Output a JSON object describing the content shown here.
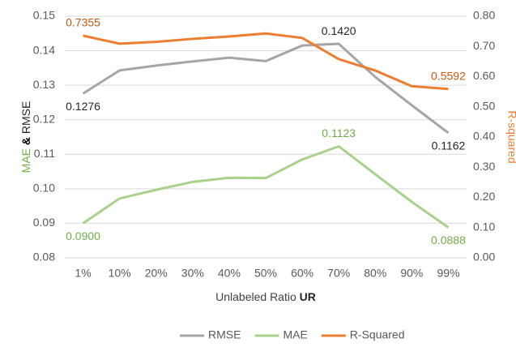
{
  "chart_data": {
    "type": "line",
    "categories": [
      "1%",
      "10%",
      "20%",
      "30%",
      "40%",
      "50%",
      "60%",
      "70%",
      "80%",
      "90%",
      "99%"
    ],
    "series": [
      {
        "name": "RMSE",
        "color": "#a5a5a5",
        "axis": "y",
        "values": [
          0.1276,
          0.1343,
          0.1357,
          0.1369,
          0.138,
          0.137,
          0.1415,
          0.142,
          0.1324,
          0.1242,
          0.1162
        ],
        "value_labels": [
          "0.1276",
          null,
          null,
          null,
          null,
          null,
          null,
          "0.1420",
          null,
          null,
          "0.1162"
        ],
        "label_color": "#262626"
      },
      {
        "name": "MAE",
        "color": "#a9d18e",
        "axis": "y",
        "values": [
          0.09,
          0.0972,
          0.0997,
          0.102,
          0.1032,
          0.1031,
          0.1085,
          0.1123,
          0.1042,
          0.0962,
          0.0888
        ],
        "value_labels": [
          "0.0900",
          null,
          null,
          null,
          null,
          null,
          null,
          "0.1123",
          null,
          null,
          "0.0888"
        ],
        "label_color": "#70ad47"
      },
      {
        "name": "R-Squared",
        "color": "#ed7d31",
        "axis": "y2",
        "values": [
          0.7355,
          0.709,
          0.715,
          0.725,
          0.733,
          0.743,
          0.728,
          0.658,
          0.62,
          0.568,
          0.5592
        ],
        "value_labels": [
          "0.7355",
          null,
          null,
          null,
          null,
          null,
          null,
          null,
          null,
          null,
          "0.5592"
        ],
        "label_color": "#c55a11"
      }
    ],
    "ylim": [
      0.08,
      0.15
    ],
    "yticks": [
      0.08,
      0.09,
      {
        "value": 0.1,
        "label": "0.10"
      },
      0.11,
      0.12,
      0.13,
      0.14,
      0.15
    ],
    "y2lim": [
      0,
      0.8
    ],
    "y2ticks": [
      {
        "value": 0,
        "label": "0.00"
      },
      {
        "value": 0.1,
        "label": "0.10"
      },
      {
        "value": 0.2,
        "label": "0.20"
      },
      {
        "value": 0.3,
        "label": "0.30"
      },
      {
        "value": 0.4,
        "label": "0.40"
      },
      {
        "value": 0.5,
        "label": "0.50"
      },
      {
        "value": 0.6,
        "label": "0.60"
      },
      {
        "value": 0.7,
        "label": "0.70"
      },
      {
        "value": 0.8,
        "label": "0.80"
      }
    ],
    "ylabel_parts": [
      "MAE",
      "&",
      "RMSE"
    ],
    "y2label": "R-squared",
    "xlabel_parts": [
      "Unlabeled Ratio ",
      "UR"
    ],
    "grid": true,
    "legend": "bottom"
  }
}
